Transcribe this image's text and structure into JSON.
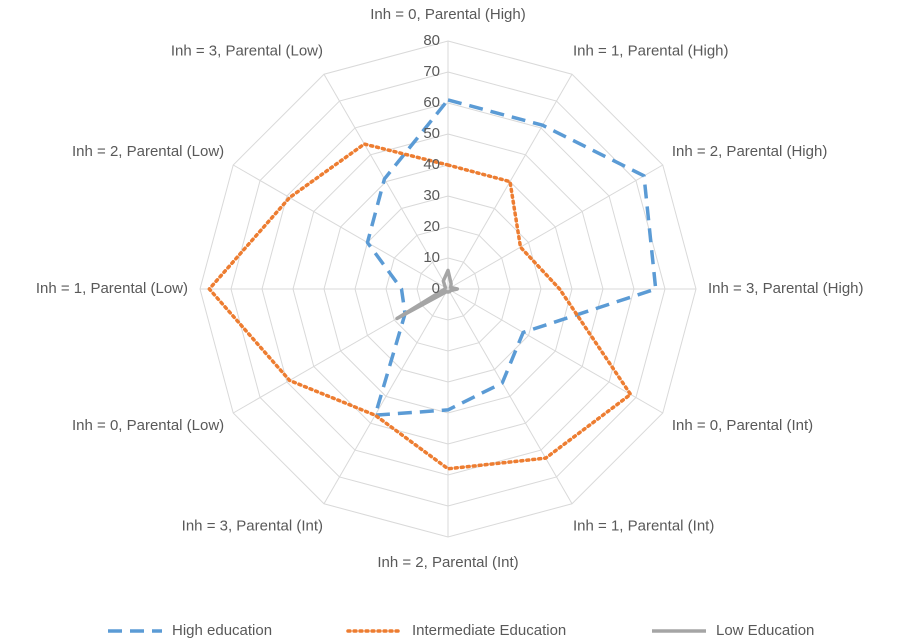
{
  "chart_data": {
    "type": "radar",
    "categories": [
      "Inh = 0, Parental (High)",
      "Inh = 1, Parental (High)",
      "Inh = 2, Parental (High)",
      "Inh = 3, Parental (High)",
      "Inh = 0, Parental (Int)",
      "Inh = 1, Parental (Int)",
      "Inh = 2, Parental (Int)",
      "Inh = 3, Parental (Int)",
      "Inh = 0, Parental (Low)",
      "Inh = 1, Parental (Low)",
      "Inh = 2, Parental (Low)",
      "Inh = 3, Parental (Low)"
    ],
    "series": [
      {
        "name": "High education",
        "color": "#5b9bd5",
        "line_style": "dashed",
        "values": [
          61,
          61,
          73,
          67,
          28,
          35,
          39,
          47,
          16,
          15,
          30,
          41
        ]
      },
      {
        "name": "Intermediate Education",
        "color": "#ed7d31",
        "line_style": "dotted",
        "values": [
          40,
          40,
          27,
          36,
          68,
          63,
          58,
          47,
          59,
          77,
          59,
          54
        ]
      },
      {
        "name": "Low Education",
        "color": "#a5a5a5",
        "line_style": "solid",
        "values": [
          6,
          2,
          1,
          3,
          1,
          1,
          1,
          1,
          19,
          1,
          1,
          3
        ]
      }
    ],
    "ylim": [
      0,
      80
    ],
    "yticks": [
      0,
      10,
      20,
      30,
      40,
      50,
      60,
      70,
      80
    ],
    "grid": true,
    "legend": "bottom"
  }
}
